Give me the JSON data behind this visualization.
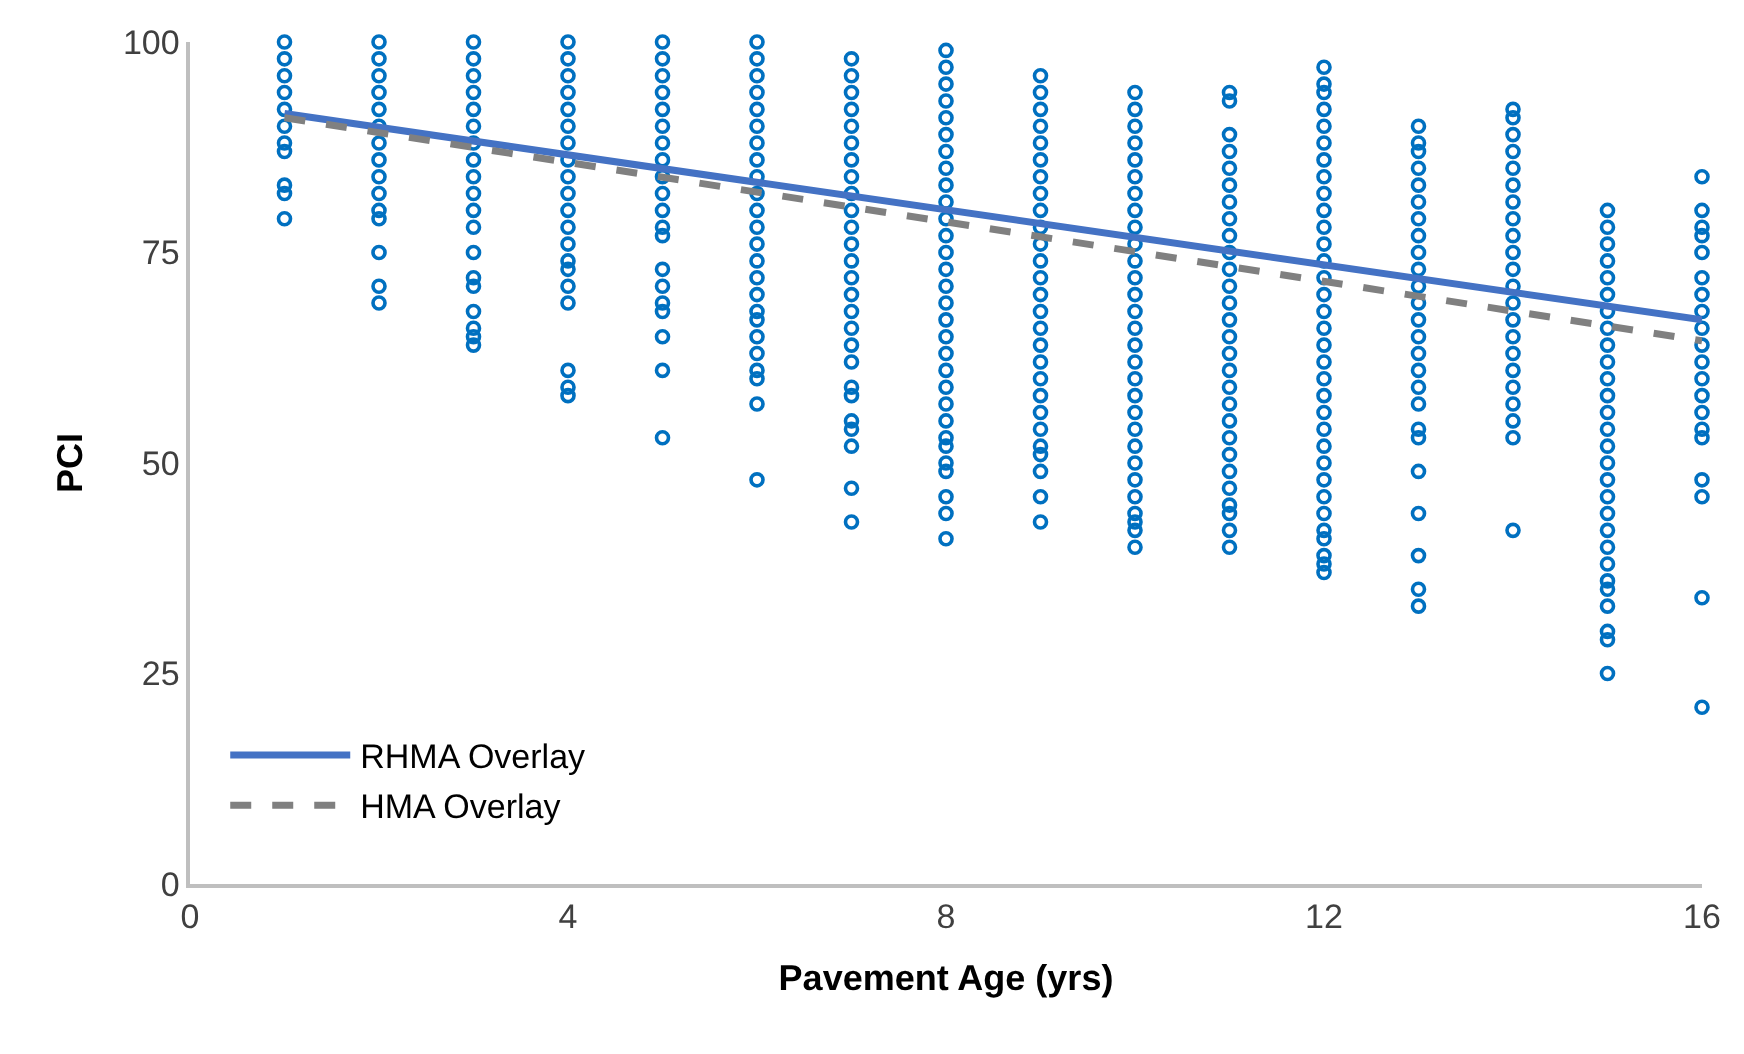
{
  "chart_data": {
    "type": "scatter",
    "xlabel": "Pavement Age (yrs)",
    "ylabel": "PCI",
    "xlim": [
      0,
      16
    ],
    "xticks": [
      0,
      4,
      8,
      12,
      16
    ],
    "ylim": [
      0,
      100
    ],
    "yticks": [
      0,
      25,
      50,
      75,
      100
    ],
    "grid": false,
    "legend": "bottom left",
    "marker": "circle",
    "series": [
      {
        "color": "#0070c0",
        "x": [
          1,
          1,
          1,
          1,
          1,
          1,
          1,
          1,
          1,
          1,
          1,
          2,
          2,
          2,
          2,
          2,
          2,
          2,
          2,
          2,
          2,
          2,
          2,
          2,
          2,
          2,
          3,
          3,
          3,
          3,
          3,
          3,
          3,
          3,
          3,
          3,
          3,
          3,
          3,
          3,
          3,
          3,
          3,
          3,
          3,
          4,
          4,
          4,
          4,
          4,
          4,
          4,
          4,
          4,
          4,
          4,
          4,
          4,
          4,
          4,
          4,
          4,
          4,
          4,
          4,
          5,
          5,
          5,
          5,
          5,
          5,
          5,
          5,
          5,
          5,
          5,
          5,
          5,
          5,
          5,
          5,
          5,
          5,
          5,
          5,
          6,
          6,
          6,
          6,
          6,
          6,
          6,
          6,
          6,
          6,
          6,
          6,
          6,
          6,
          6,
          6,
          6,
          6,
          6,
          6,
          6,
          6,
          6,
          6,
          7,
          7,
          7,
          7,
          7,
          7,
          7,
          7,
          7,
          7,
          7,
          7,
          7,
          7,
          7,
          7,
          7,
          7,
          7,
          7,
          7,
          7,
          7,
          7,
          7,
          7,
          8,
          8,
          8,
          8,
          8,
          8,
          8,
          8,
          8,
          8,
          8,
          8,
          8,
          8,
          8,
          8,
          8,
          8,
          8,
          8,
          8,
          8,
          8,
          8,
          8,
          8,
          8,
          8,
          8,
          8,
          9,
          9,
          9,
          9,
          9,
          9,
          9,
          9,
          9,
          9,
          9,
          9,
          9,
          9,
          9,
          9,
          9,
          9,
          9,
          9,
          9,
          9,
          9,
          9,
          9,
          9,
          9,
          10,
          10,
          10,
          10,
          10,
          10,
          10,
          10,
          10,
          10,
          10,
          10,
          10,
          10,
          10,
          10,
          10,
          10,
          10,
          10,
          10,
          10,
          10,
          10,
          10,
          10,
          10,
          10,
          10,
          11,
          11,
          11,
          11,
          11,
          11,
          11,
          11,
          11,
          11,
          11,
          11,
          11,
          11,
          11,
          11,
          11,
          11,
          11,
          11,
          11,
          11,
          11,
          11,
          11,
          11,
          11,
          11,
          12,
          12,
          12,
          12,
          12,
          12,
          12,
          12,
          12,
          12,
          12,
          12,
          12,
          12,
          12,
          12,
          12,
          12,
          12,
          12,
          12,
          12,
          12,
          12,
          12,
          12,
          12,
          12,
          12,
          12,
          12,
          12,
          12,
          13,
          13,
          13,
          13,
          13,
          13,
          13,
          13,
          13,
          13,
          13,
          13,
          13,
          13,
          13,
          13,
          13,
          13,
          13,
          13,
          13,
          13,
          13,
          13,
          13,
          14,
          14,
          14,
          14,
          14,
          14,
          14,
          14,
          14,
          14,
          14,
          14,
          14,
          14,
          14,
          14,
          14,
          14,
          14,
          14,
          14,
          14,
          15,
          15,
          15,
          15,
          15,
          15,
          15,
          15,
          15,
          15,
          15,
          15,
          15,
          15,
          15,
          15,
          15,
          15,
          15,
          15,
          15,
          15,
          15,
          15,
          15,
          15,
          15,
          15,
          16,
          16,
          16,
          16,
          16,
          16,
          16,
          16,
          16,
          16,
          16,
          16,
          16,
          16,
          16,
          16,
          16,
          16,
          16,
          16
        ],
        "values": [
          100,
          98,
          96,
          94,
          92,
          90,
          88,
          87,
          83,
          82,
          79,
          100,
          98,
          96,
          94,
          92,
          90,
          88,
          86,
          84,
          82,
          80,
          79,
          75,
          71,
          69,
          100,
          98,
          96,
          94,
          92,
          90,
          88,
          86,
          84,
          82,
          80,
          78,
          75,
          72,
          71,
          68,
          66,
          65,
          64,
          100,
          98,
          96,
          94,
          92,
          90,
          88,
          86,
          84,
          82,
          80,
          78,
          76,
          74,
          73,
          71,
          69,
          61,
          59,
          58,
          100,
          98,
          96,
          94,
          92,
          90,
          88,
          86,
          84,
          82,
          80,
          78,
          77,
          73,
          71,
          69,
          68,
          65,
          61,
          53,
          100,
          98,
          96,
          94,
          92,
          90,
          88,
          86,
          84,
          82,
          80,
          78,
          76,
          74,
          72,
          70,
          68,
          67,
          65,
          63,
          61,
          60,
          57,
          48,
          98,
          96,
          94,
          92,
          90,
          88,
          86,
          84,
          82,
          80,
          78,
          76,
          74,
          72,
          70,
          68,
          66,
          64,
          62,
          59,
          58,
          55,
          54,
          52,
          47,
          43,
          99,
          97,
          95,
          93,
          91,
          89,
          87,
          85,
          83,
          81,
          79,
          77,
          75,
          73,
          71,
          69,
          67,
          65,
          63,
          61,
          59,
          57,
          55,
          53,
          52,
          50,
          49,
          46,
          44,
          41,
          96,
          94,
          92,
          90,
          88,
          86,
          84,
          82,
          80,
          78,
          76,
          74,
          72,
          70,
          68,
          66,
          64,
          62,
          60,
          58,
          56,
          54,
          52,
          51,
          49,
          46,
          43,
          94,
          92,
          90,
          88,
          86,
          84,
          82,
          80,
          78,
          76,
          74,
          72,
          70,
          68,
          66,
          64,
          62,
          60,
          58,
          56,
          54,
          52,
          50,
          48,
          46,
          44,
          43,
          42,
          40,
          94,
          93,
          89,
          87,
          85,
          83,
          81,
          79,
          77,
          75,
          73,
          71,
          69,
          67,
          65,
          63,
          61,
          59,
          57,
          55,
          53,
          51,
          49,
          47,
          45,
          44,
          42,
          40,
          97,
          95,
          94,
          92,
          90,
          88,
          86,
          84,
          82,
          80,
          78,
          76,
          74,
          72,
          70,
          68,
          66,
          64,
          62,
          60,
          58,
          56,
          54,
          52,
          50,
          48,
          46,
          44,
          42,
          41,
          39,
          38,
          37,
          90,
          88,
          87,
          85,
          83,
          81,
          79,
          77,
          75,
          73,
          71,
          69,
          67,
          65,
          63,
          61,
          59,
          57,
          54,
          53,
          49,
          44,
          39,
          35,
          33,
          92,
          91,
          89,
          87,
          85,
          83,
          81,
          79,
          77,
          75,
          73,
          71,
          69,
          67,
          65,
          63,
          61,
          59,
          57,
          55,
          53,
          42,
          80,
          78,
          76,
          74,
          72,
          70,
          68,
          66,
          64,
          62,
          60,
          58,
          56,
          54,
          52,
          50,
          48,
          46,
          44,
          42,
          40,
          38,
          36,
          35,
          33,
          30,
          29,
          25,
          84,
          80,
          78,
          77,
          75,
          72,
          70,
          68,
          66,
          64,
          62,
          60,
          58,
          56,
          54,
          53,
          48,
          46,
          34,
          21
        ]
      },
      {
        "type": "line",
        "name": "RHMA Overlay",
        "color": "#4472c4",
        "line_style": "solid",
        "marker": "none",
        "x": [
          1,
          16
        ],
        "values": [
          91.5,
          67
        ]
      },
      {
        "type": "line",
        "name": "HMA Overlay",
        "color": "#808080",
        "line_style": "dashed",
        "marker": "none",
        "x": [
          1,
          16
        ],
        "values": [
          91,
          64.5
        ]
      }
    ]
  }
}
